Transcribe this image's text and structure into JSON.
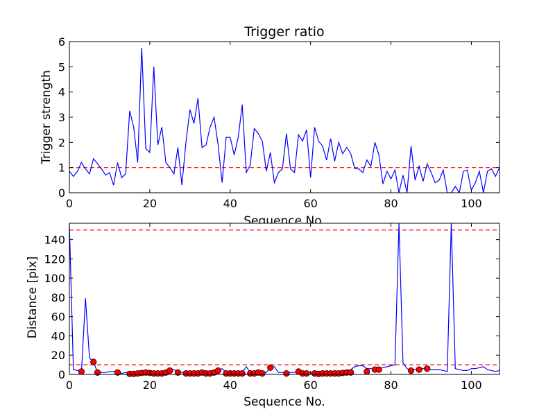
{
  "chart_data": [
    {
      "type": "line",
      "title": "Trigger ratio",
      "xlabel": "Sequence No.",
      "ylabel": "Trigger strength",
      "xlim": [
        0,
        107
      ],
      "ylim": [
        0,
        6
      ],
      "xticks": [
        0,
        20,
        40,
        60,
        80,
        100
      ],
      "yticks": [
        0,
        1,
        2,
        3,
        4,
        5,
        6
      ],
      "hlines": [
        {
          "y": 1,
          "color": "#ff0000",
          "style": "dashed"
        }
      ],
      "series": [
        {
          "name": "trigger strength",
          "color": "#0000ff",
          "x": [
            0,
            1,
            2,
            3,
            4,
            5,
            6,
            7,
            8,
            9,
            10,
            11,
            12,
            13,
            14,
            15,
            16,
            17,
            18,
            19,
            20,
            21,
            22,
            23,
            24,
            25,
            26,
            27,
            28,
            29,
            30,
            31,
            32,
            33,
            34,
            35,
            36,
            37,
            38,
            39,
            40,
            41,
            42,
            43,
            44,
            45,
            46,
            47,
            48,
            49,
            50,
            51,
            52,
            53,
            54,
            55,
            56,
            57,
            58,
            59,
            60,
            61,
            62,
            63,
            64,
            65,
            66,
            67,
            68,
            69,
            70,
            71,
            72,
            73,
            74,
            75,
            76,
            77,
            78,
            79,
            80,
            81,
            82,
            83,
            84,
            85,
            86,
            87,
            88,
            89,
            90,
            91,
            92,
            93,
            94,
            95,
            96,
            97,
            98,
            99,
            100,
            101,
            102,
            103,
            104,
            105,
            106,
            107
          ],
          "y": [
            0.85,
            0.65,
            0.85,
            1.2,
            0.95,
            0.75,
            1.35,
            1.15,
            0.95,
            0.7,
            0.8,
            0.3,
            1.2,
            0.6,
            0.75,
            3.25,
            2.6,
            1.2,
            5.75,
            1.75,
            1.6,
            5.0,
            1.9,
            2.6,
            1.2,
            1.0,
            0.75,
            1.8,
            0.3,
            2.0,
            3.3,
            2.75,
            3.75,
            1.8,
            1.9,
            2.6,
            3.0,
            1.9,
            0.4,
            2.2,
            2.2,
            1.5,
            2.2,
            3.5,
            0.8,
            1.1,
            2.55,
            2.35,
            2.05,
            0.85,
            1.6,
            0.4,
            0.8,
            0.95,
            2.35,
            0.95,
            0.8,
            2.3,
            2.05,
            2.5,
            0.6,
            2.6,
            2.05,
            1.85,
            1.3,
            2.15,
            1.25,
            2.0,
            1.55,
            1.8,
            1.55,
            0.95,
            0.95,
            0.8,
            1.3,
            1.05,
            2.0,
            1.5,
            0.35,
            0.85,
            0.55,
            0.9,
            0.0,
            0.7,
            0.0,
            1.85,
            0.5,
            1.05,
            0.45,
            1.15,
            0.8,
            0.4,
            0.5,
            0.9,
            0.0,
            0.0,
            0.25,
            0.0,
            0.85,
            0.9,
            0.1,
            0.4,
            0.85,
            0.0,
            0.85,
            0.95,
            0.65,
            1.0
          ]
        }
      ]
    },
    {
      "type": "line",
      "title": "",
      "xlabel": "Sequence No.",
      "ylabel": "Distance [pix]",
      "xlim": [
        0,
        107
      ],
      "ylim": [
        0,
        157
      ],
      "xticks": [
        0,
        20,
        40,
        60,
        80,
        100
      ],
      "yticks": [
        0,
        20,
        40,
        60,
        80,
        100,
        120,
        140
      ],
      "hlines": [
        {
          "y": 150,
          "color": "#ff0000",
          "style": "dashed"
        },
        {
          "y": 10,
          "color": "#ff0000",
          "style": "dashed"
        }
      ],
      "series": [
        {
          "name": "distance",
          "color": "#0000ff",
          "x": [
            0,
            1,
            2,
            3,
            4,
            5,
            6,
            7,
            8,
            9,
            10,
            11,
            12,
            13,
            14,
            15,
            16,
            17,
            18,
            19,
            20,
            21,
            22,
            23,
            24,
            25,
            26,
            27,
            28,
            29,
            30,
            31,
            32,
            33,
            34,
            35,
            36,
            37,
            38,
            39,
            40,
            41,
            42,
            43,
            44,
            45,
            46,
            47,
            48,
            49,
            50,
            51,
            52,
            53,
            54,
            55,
            56,
            57,
            58,
            59,
            60,
            61,
            62,
            63,
            64,
            65,
            66,
            67,
            68,
            69,
            70,
            71,
            72,
            73,
            74,
            75,
            76,
            77,
            78,
            79,
            80,
            81,
            82,
            83,
            84,
            85,
            86,
            87,
            88,
            89,
            90,
            91,
            92,
            93,
            94,
            95,
            96,
            97,
            98,
            99,
            100,
            101,
            102,
            103,
            104,
            105,
            106,
            107
          ],
          "y": [
            157,
            5,
            4,
            3,
            79,
            17,
            13,
            2,
            2,
            2,
            3,
            3,
            3,
            1,
            2,
            1,
            1,
            1,
            2,
            2,
            2,
            2,
            2,
            2,
            3,
            4,
            5,
            3,
            2,
            2,
            2,
            2,
            2,
            3,
            3,
            3,
            3,
            4,
            6,
            2,
            2,
            2,
            2,
            2,
            8,
            2,
            3,
            3,
            3,
            2,
            7,
            8,
            2,
            2,
            2,
            2,
            2,
            3,
            3,
            2,
            2,
            2,
            2,
            2,
            2,
            2,
            3,
            3,
            4,
            4,
            5,
            8,
            9,
            9,
            6,
            6,
            5,
            6,
            7,
            8,
            9,
            10,
            157,
            12,
            6,
            4,
            5,
            6,
            6,
            6,
            5,
            5,
            5,
            4,
            3,
            157,
            6,
            5,
            4,
            4,
            6,
            6,
            7,
            8,
            5,
            4,
            3,
            4
          ]
        },
        {
          "name": "markers",
          "color": "#ff0000",
          "marker": "circle",
          "x": [
            3,
            6,
            7,
            12,
            15,
            16,
            17,
            18,
            19,
            20,
            21,
            22,
            23,
            24,
            25,
            27,
            29,
            30,
            31,
            32,
            33,
            34,
            35,
            36,
            37,
            39,
            40,
            41,
            42,
            43,
            45,
            46,
            47,
            48,
            50,
            54,
            57,
            58,
            59,
            61,
            62,
            63,
            64,
            65,
            66,
            67,
            68,
            69,
            70,
            74,
            76,
            77,
            85,
            87,
            89
          ],
          "y": [
            3,
            13,
            2,
            2,
            0.5,
            0.5,
            1,
            1.5,
            2,
            1.5,
            1,
            1,
            1,
            2,
            4,
            2,
            1,
            1,
            1,
            1,
            2,
            1,
            1,
            2,
            4,
            1,
            1,
            1,
            1,
            1,
            1,
            1,
            2,
            1,
            7,
            1,
            3,
            1,
            1,
            1,
            0.5,
            1,
            1,
            1,
            1,
            1,
            1.5,
            2,
            2,
            3,
            5,
            5,
            4,
            5,
            6
          ]
        }
      ]
    }
  ]
}
